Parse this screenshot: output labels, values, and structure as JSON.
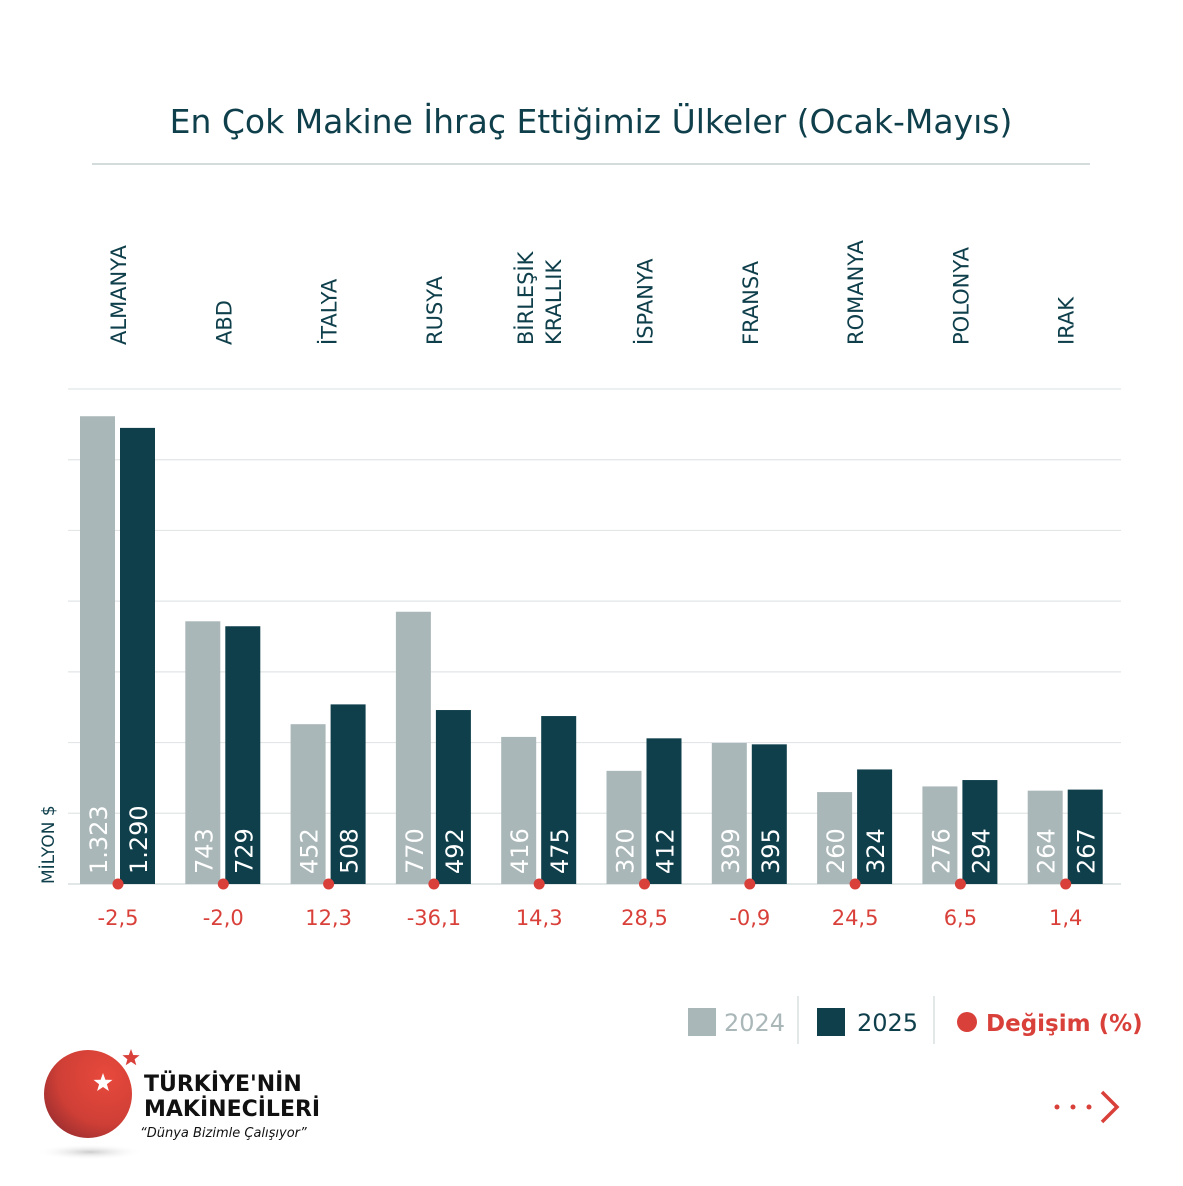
{
  "chart_data": {
    "type": "bar",
    "title": "En Çok Makine İhraç Ettiğimiz Ülkeler (Ocak-Mayıs)",
    "ylabel": "MİLYON $",
    "ylim": [
      0,
      1400
    ],
    "ytick_step": 200,
    "grid": true,
    "categories": [
      [
        "ALMANYA"
      ],
      [
        "ABD"
      ],
      [
        "İTALYA"
      ],
      [
        "RUSYA"
      ],
      [
        "BİRLEŞİK",
        "KRALLIK"
      ],
      [
        "İSPANYA"
      ],
      [
        "FRANSA"
      ],
      [
        "ROMANYA"
      ],
      [
        "POLONYA"
      ],
      [
        "IRAK"
      ]
    ],
    "series": [
      {
        "name": "2024",
        "color": "#aab7b8",
        "values": [
          1323,
          743,
          452,
          770,
          416,
          320,
          399,
          260,
          276,
          264
        ],
        "labels": [
          "1.323",
          "743",
          "452",
          "770",
          "416",
          "320",
          "399",
          "260",
          "276",
          "264"
        ]
      },
      {
        "name": "2025",
        "color": "#0e3f4b",
        "values": [
          1290,
          729,
          508,
          492,
          475,
          412,
          395,
          324,
          294,
          267
        ],
        "labels": [
          "1.290",
          "729",
          "508",
          "492",
          "475",
          "412",
          "395",
          "324",
          "294",
          "267"
        ]
      }
    ],
    "change": {
      "name": "Değişim (%)",
      "color": "#d9403a",
      "labels": [
        "-2,5",
        "-2,0",
        "12,3",
        "-36,1",
        "14,3",
        "28,5",
        "-0,9",
        "24,5",
        "6,5",
        "1,4"
      ]
    },
    "legend": "bottom-right"
  },
  "logo": {
    "line1": "TÜRKİYE'NİN",
    "line2": "MAKİNECİLERİ",
    "slogan": "“Dünya Bizimle Çalışıyor”"
  },
  "nav": {
    "icon": "next-arrow-icon"
  }
}
